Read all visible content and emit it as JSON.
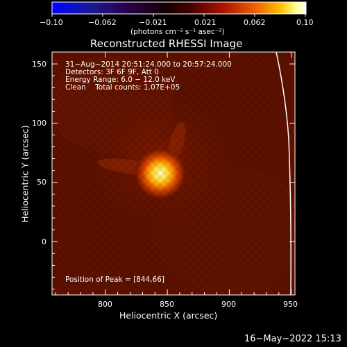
{
  "colorbar": {
    "ticks": [
      "−0.10",
      "−0.062",
      "−0.021",
      "0.021",
      "0.062",
      "0.10"
    ],
    "units": "(photons cm⁻² s⁻¹ asec⁻²)",
    "colors": [
      "#0000ff",
      "#1a006e",
      "#000000",
      "#3b0000",
      "#a01000",
      "#e04a00",
      "#ffb000",
      "#ffff80",
      "#ffffff"
    ]
  },
  "plot": {
    "title": "Reconstructed RHESSI Image",
    "info_lines": [
      "31−Aug−2014 20:51:24.000 to 20:57:24.000",
      "Detectors: 3F 6F 9F, Att 0",
      "Energy Range: 6.0 − 12.0 keV",
      "Clean    Total counts: 1.07E+05"
    ],
    "peak_text": "Position of Peak = [844,66]",
    "xlabel": "Heliocentric X (arcsec)",
    "ylabel": "Heliocentric Y (arcsec)",
    "x_ticks": [
      "800",
      "850",
      "900",
      "950"
    ],
    "y_ticks": [
      "0",
      "50",
      "100",
      "150"
    ],
    "xlim": [
      757,
      953
    ],
    "ylim": [
      -45,
      160
    ],
    "peak": [
      844,
      66
    ],
    "background_color": "#5a0f00"
  },
  "footer": {
    "timestamp": "16−May−2022 15:13"
  }
}
